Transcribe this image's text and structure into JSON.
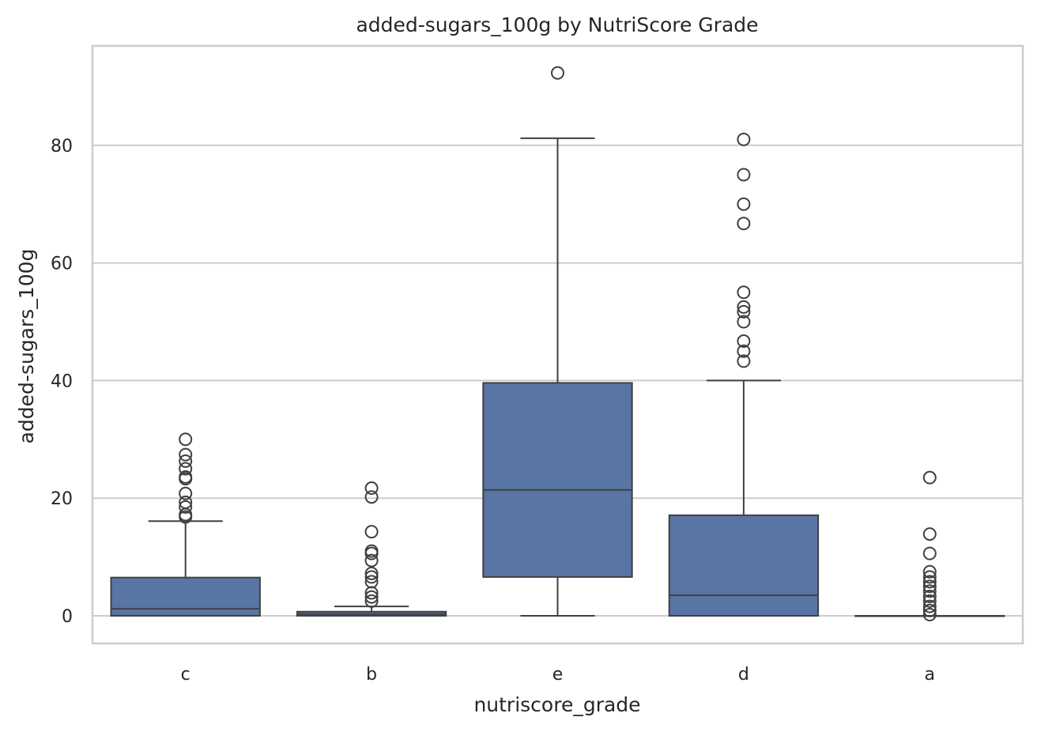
{
  "chart_data": {
    "type": "box",
    "title": "added-sugars_100g by NutriScore Grade",
    "xlabel": "nutriscore_grade",
    "ylabel": "added-sugars_100g",
    "ylim": [
      -4.8,
      97
    ],
    "yticks": [
      0,
      20,
      40,
      60,
      80
    ],
    "grid": true,
    "box_color": "#5875a4",
    "line_color": "#404040",
    "categories": [
      "c",
      "b",
      "e",
      "d",
      "a"
    ],
    "boxes": [
      {
        "category": "c",
        "whisker_low": 0,
        "q1": 0,
        "median": 1.2,
        "q3": 6.5,
        "whisker_high": 16.1,
        "outliers": [
          16.8,
          17.2,
          18.5,
          19.3,
          20.8,
          23.3,
          23.6,
          25.0,
          26.3,
          27.4,
          30.0
        ]
      },
      {
        "category": "b",
        "whisker_low": 0,
        "q1": 0,
        "median": 0.3,
        "q3": 0.7,
        "whisker_high": 1.6,
        "outliers": [
          2.5,
          3.2,
          3.9,
          5.8,
          6.6,
          7.2,
          9.4,
          10.6,
          11.0,
          14.3,
          20.2,
          21.7
        ]
      },
      {
        "category": "e",
        "whisker_low": 0,
        "q1": 6.6,
        "median": 21.4,
        "q3": 39.6,
        "whisker_high": 81.2,
        "outliers": [
          92.3
        ]
      },
      {
        "category": "d",
        "whisker_low": 0,
        "q1": 0,
        "median": 3.5,
        "q3": 17.1,
        "whisker_high": 40.0,
        "outliers": [
          43.3,
          45.0,
          46.7,
          50.0,
          51.7,
          52.5,
          55.0,
          66.7,
          70.0,
          75.0,
          81.0
        ]
      },
      {
        "category": "a",
        "whisker_low": 0,
        "q1": 0,
        "median": 0,
        "q3": 0,
        "whisker_high": 0,
        "outliers": [
          0.2,
          0.9,
          1.6,
          2.5,
          3.3,
          4.2,
          5.0,
          5.8,
          6.6,
          7.5,
          10.6,
          13.9,
          23.5
        ]
      }
    ]
  }
}
